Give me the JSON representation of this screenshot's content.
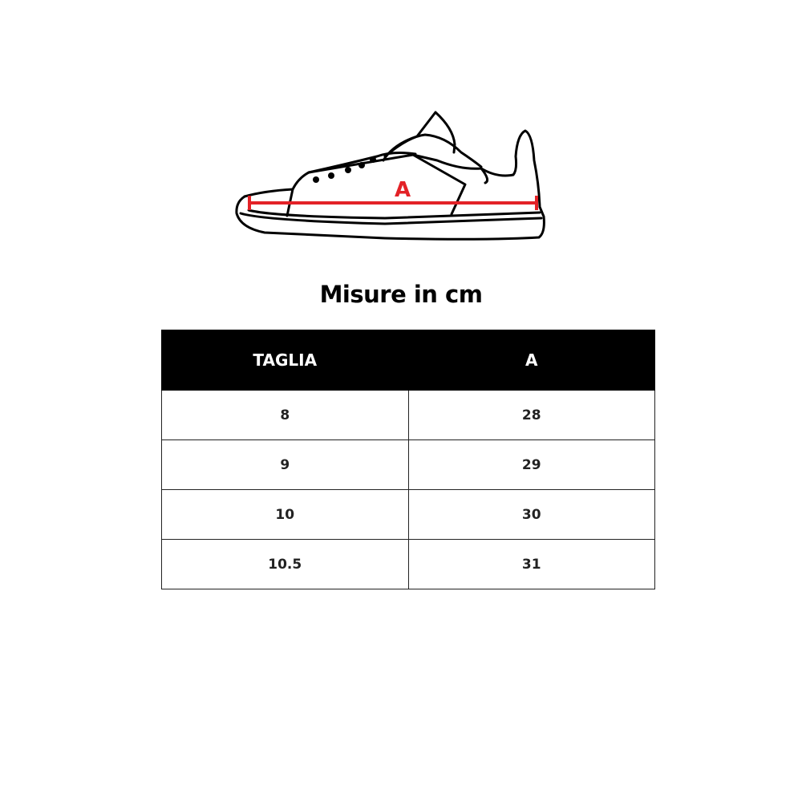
{
  "illustration": {
    "measure_label": "A",
    "measure_color": "#e32227"
  },
  "title": "Misure in cm",
  "table": {
    "headers": [
      "TAGLIA",
      "A"
    ],
    "rows": [
      [
        "8",
        "28"
      ],
      [
        "9",
        "29"
      ],
      [
        "10",
        "30"
      ],
      [
        "10.5",
        "31"
      ]
    ]
  }
}
